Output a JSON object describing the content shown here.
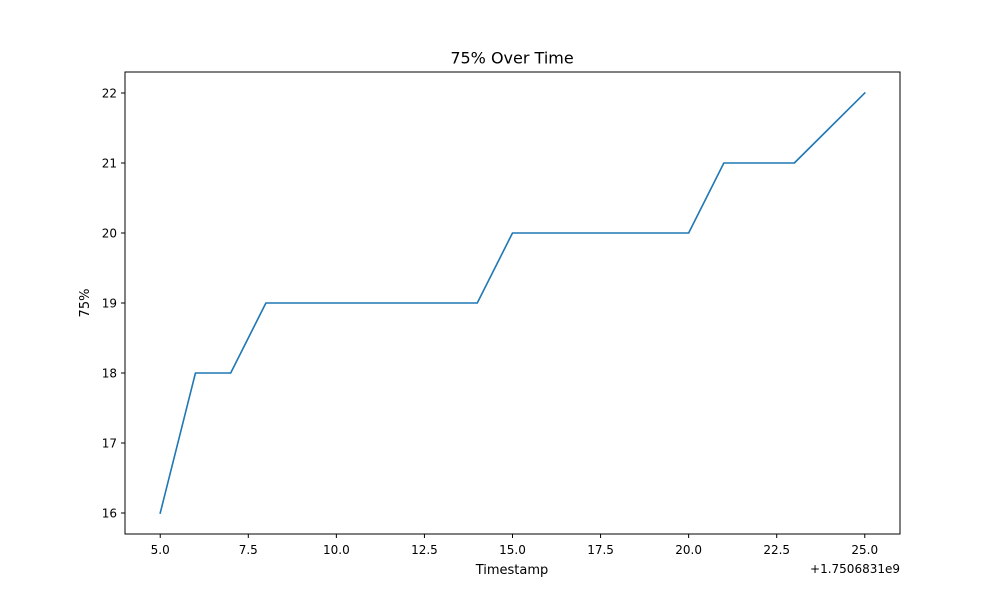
{
  "chart_data": {
    "type": "line",
    "title": "75% Over Time",
    "xlabel": "Timestamp",
    "ylabel": "75%",
    "x_offset_label": "+1.7506831e9",
    "xlim": [
      4.0,
      26.0
    ],
    "ylim": [
      15.7,
      22.3
    ],
    "x_ticks": [
      5.0,
      7.5,
      10.0,
      12.5,
      15.0,
      17.5,
      20.0,
      22.5,
      25.0
    ],
    "x_tick_labels": [
      "5.0",
      "7.5",
      "10.0",
      "12.5",
      "15.0",
      "17.5",
      "20.0",
      "22.5",
      "25.0"
    ],
    "y_ticks": [
      16,
      17,
      18,
      19,
      20,
      21,
      22
    ],
    "y_tick_labels": [
      "16",
      "17",
      "18",
      "19",
      "20",
      "21",
      "22"
    ],
    "grid": false,
    "series": [
      {
        "color": "#1f77b4",
        "x": [
          5,
          6,
          7,
          8,
          9,
          10,
          11,
          12,
          13,
          14,
          15,
          16,
          17,
          18,
          19,
          20,
          21,
          22,
          23,
          24,
          25
        ],
        "y": [
          16,
          18,
          18,
          19,
          19,
          19,
          19,
          19,
          19,
          19,
          20,
          20,
          20,
          20,
          20,
          20,
          21,
          21,
          21,
          21.5,
          22
        ]
      }
    ]
  }
}
